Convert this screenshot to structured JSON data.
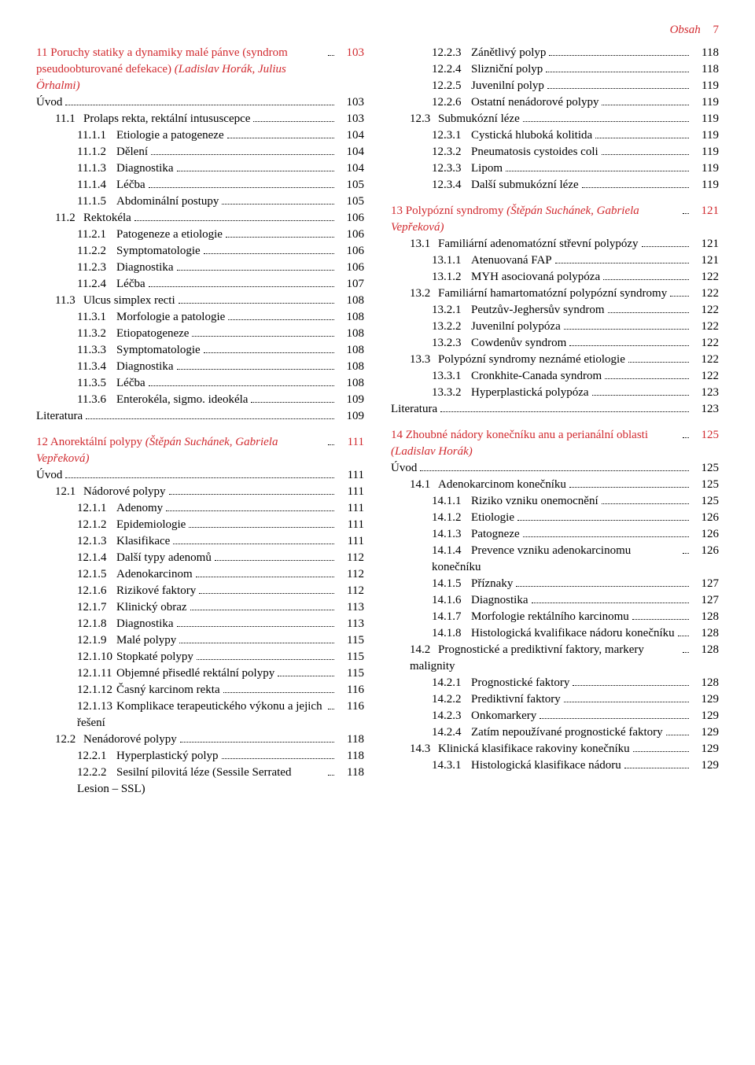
{
  "colors": {
    "accent": "#d12a2f",
    "text": "#000000",
    "background": "#ffffff"
  },
  "running_head": {
    "label": "Obsah",
    "page_number": "7"
  },
  "entries": [
    {
      "level": 0,
      "text": "11  Poruchy statiky a dynamiky malé pánve (syndrom pseudoobturované defekace) <i>(Ladislav Horák, Julius Örhalmi)</i>",
      "page": "103",
      "chapter": true
    },
    {
      "level": 0,
      "text": "Úvod",
      "page": "103"
    },
    {
      "level": 1,
      "num": "11.1",
      "text": "Prolaps rekta, rektální intususcepce",
      "page": "103"
    },
    {
      "level": 2,
      "num": "11.1.1",
      "text": "Etiologie a patogeneze",
      "page": "104"
    },
    {
      "level": 2,
      "num": "11.1.2",
      "text": "Dělení",
      "page": "104"
    },
    {
      "level": 2,
      "num": "11.1.3",
      "text": "Diagnostika",
      "page": "104"
    },
    {
      "level": 2,
      "num": "11.1.4",
      "text": "Léčba",
      "page": "105"
    },
    {
      "level": 2,
      "num": "11.1.5",
      "text": "Abdominální postupy",
      "page": "105"
    },
    {
      "level": 1,
      "num": "11.2",
      "text": "Rektokéla",
      "page": "106"
    },
    {
      "level": 2,
      "num": "11.2.1",
      "text": "Patogeneze a etiologie",
      "page": "106"
    },
    {
      "level": 2,
      "num": "11.2.2",
      "text": "Symptomatologie",
      "page": "106"
    },
    {
      "level": 2,
      "num": "11.2.3",
      "text": "Diagnostika",
      "page": "106"
    },
    {
      "level": 2,
      "num": "11.2.4",
      "text": "Léčba",
      "page": "107"
    },
    {
      "level": 1,
      "num": "11.3",
      "text": "Ulcus simplex recti",
      "page": "108"
    },
    {
      "level": 2,
      "num": "11.3.1",
      "text": "Morfologie a patologie",
      "page": "108"
    },
    {
      "level": 2,
      "num": "11.3.2",
      "text": "Etiopatogeneze",
      "page": "108"
    },
    {
      "level": 2,
      "num": "11.3.3",
      "text": "Symptomatologie",
      "page": "108"
    },
    {
      "level": 2,
      "num": "11.3.4",
      "text": "Diagnostika",
      "page": "108"
    },
    {
      "level": 2,
      "num": "11.3.5",
      "text": "Léčba",
      "page": "108"
    },
    {
      "level": 2,
      "num": "11.3.6",
      "text": "Enterokéla, sigmo. ideokéla",
      "page": "109"
    },
    {
      "level": 0,
      "text": "Literatura",
      "page": "109"
    },
    {
      "level": 0,
      "text": "12  Anorektální polypy <i>(Štěpán Suchánek, Gabriela Vepřeková)</i>",
      "page": "111",
      "chapter": true,
      "space_before": true
    },
    {
      "level": 0,
      "text": "Úvod",
      "page": "111"
    },
    {
      "level": 1,
      "num": "12.1",
      "text": "Nádorové polypy",
      "page": "111"
    },
    {
      "level": 2,
      "num": "12.1.1",
      "text": "Adenomy",
      "page": "111"
    },
    {
      "level": 2,
      "num": "12.1.2",
      "text": "Epidemiologie",
      "page": "111"
    },
    {
      "level": 2,
      "num": "12.1.3",
      "text": "Klasifikace",
      "page": "111"
    },
    {
      "level": 2,
      "num": "12.1.4",
      "text": "Další typy adenomů",
      "page": "112"
    },
    {
      "level": 2,
      "num": "12.1.5",
      "text": "Adenokarcinom",
      "page": "112"
    },
    {
      "level": 2,
      "num": "12.1.6",
      "text": "Rizikové faktory",
      "page": "112"
    },
    {
      "level": 2,
      "num": "12.1.7",
      "text": "Klinický obraz",
      "page": "113"
    },
    {
      "level": 2,
      "num": "12.1.8",
      "text": "Diagnostika",
      "page": "113"
    },
    {
      "level": 2,
      "num": "12.1.9",
      "text": "Malé polypy",
      "page": "115"
    },
    {
      "level": 2,
      "num": "12.1.10",
      "text": "Stopkaté polypy",
      "page": "115"
    },
    {
      "level": 2,
      "num": "12.1.11",
      "text": "Objemné přisedlé rektální polypy",
      "page": "115"
    },
    {
      "level": 2,
      "num": "12.1.12",
      "text": "Časný karcinom rekta",
      "page": "116"
    },
    {
      "level": 2,
      "num": "12.1.13",
      "text": "Komplikace terapeutic­kého výkonu a jejich řešení",
      "page": "116"
    },
    {
      "level": 1,
      "num": "12.2",
      "text": "Nenádorové polypy",
      "page": "118"
    },
    {
      "level": 2,
      "num": "12.2.1",
      "text": "Hyperplastický polyp",
      "page": "118"
    },
    {
      "level": 2,
      "num": "12.2.2",
      "text": "Sesilní pilovitá léze (Sessile Serrated Lesion – SSL)",
      "page": "118"
    },
    {
      "level": 2,
      "num": "12.2.3",
      "text": "Zánětlivý polyp",
      "page": "118"
    },
    {
      "level": 2,
      "num": "12.2.4",
      "text": "Slizniční polyp",
      "page": "118"
    },
    {
      "level": 2,
      "num": "12.2.5",
      "text": "Juvenilní polyp",
      "page": "119"
    },
    {
      "level": 2,
      "num": "12.2.6",
      "text": "Ostatní nenádorové polypy",
      "page": "119"
    },
    {
      "level": 1,
      "num": "12.3",
      "text": "Submukózní léze",
      "page": "119"
    },
    {
      "level": 2,
      "num": "12.3.1",
      "text": "Cystická hluboká kolitida",
      "page": "119"
    },
    {
      "level": 2,
      "num": "12.3.2",
      "text": "Pneumatosis cystoides coli",
      "page": "119"
    },
    {
      "level": 2,
      "num": "12.3.3",
      "text": "Lipom",
      "page": "119"
    },
    {
      "level": 2,
      "num": "12.3.4",
      "text": "Další submukózní léze",
      "page": "119"
    },
    {
      "level": 0,
      "text": "13  Polypózní syndromy <i>(Štěpán Suchánek, Gabriela Vepřeková)</i>",
      "page": "121",
      "chapter": true,
      "space_before": true
    },
    {
      "level": 1,
      "num": "13.1",
      "text": "Familiární adenomatózní střevní polypózy",
      "page": "121"
    },
    {
      "level": 2,
      "num": "13.1.1",
      "text": "Atenuovaná FAP",
      "page": "121"
    },
    {
      "level": 2,
      "num": "13.1.2",
      "text": "MYH asociovaná polypóza",
      "page": "122"
    },
    {
      "level": 1,
      "num": "13.2",
      "text": "Familiární hamartomatózní poly­pózní syndromy",
      "page": "122"
    },
    {
      "level": 2,
      "num": "13.2.1",
      "text": "Peutzův-Jeghersův syn­drom",
      "page": "122"
    },
    {
      "level": 2,
      "num": "13.2.2",
      "text": "Juvenilní polypóza",
      "page": "122"
    },
    {
      "level": 2,
      "num": "13.2.3",
      "text": "Cowdenův syndrom",
      "page": "122"
    },
    {
      "level": 1,
      "num": "13.3",
      "text": "Polypózní syndromy neznámé etiologie",
      "page": "122"
    },
    {
      "level": 2,
      "num": "13.3.1",
      "text": "Cronkhite-Canada syndrom",
      "page": "122"
    },
    {
      "level": 2,
      "num": "13.3.2",
      "text": "Hyperplastická polypóza",
      "page": "123"
    },
    {
      "level": 0,
      "text": "Literatura",
      "page": "123"
    },
    {
      "level": 0,
      "text": "14  Zhoubné nádory konečníku anu a perianální oblasti <i>(Ladislav Horák)</i>",
      "page": "125",
      "chapter": true,
      "space_before": true
    },
    {
      "level": 0,
      "text": "Úvod",
      "page": "125"
    },
    {
      "level": 1,
      "num": "14.1",
      "text": "Adenokarcinom konečníku",
      "page": "125"
    },
    {
      "level": 2,
      "num": "14.1.1",
      "text": "Riziko vzniku onemocnění",
      "page": "125"
    },
    {
      "level": 2,
      "num": "14.1.2",
      "text": "Etiologie",
      "page": "126"
    },
    {
      "level": 2,
      "num": "14.1.3",
      "text": "Patogneze",
      "page": "126"
    },
    {
      "level": 2,
      "num": "14.1.4",
      "text": "Prevence vzniku adenokar­cinomu konečníku",
      "page": "126"
    },
    {
      "level": 2,
      "num": "14.1.5",
      "text": "Příznaky",
      "page": "127"
    },
    {
      "level": 2,
      "num": "14.1.6",
      "text": "Diagnostika",
      "page": "127"
    },
    {
      "level": 2,
      "num": "14.1.7",
      "text": "Morfologie rektálního kar­cinomu",
      "page": "128"
    },
    {
      "level": 2,
      "num": "14.1.8",
      "text": "Histologická kvalifikace nádoru konečníku",
      "page": "128"
    },
    {
      "level": 1,
      "num": "14.2",
      "text": "Prognostické a prediktivní faktory, markery malignity",
      "page": "128"
    },
    {
      "level": 2,
      "num": "14.2.1",
      "text": "Prognostické faktory",
      "page": "128"
    },
    {
      "level": 2,
      "num": "14.2.2",
      "text": "Prediktivní faktory",
      "page": "129"
    },
    {
      "level": 2,
      "num": "14.2.3",
      "text": "Onkomarkery",
      "page": "129"
    },
    {
      "level": 2,
      "num": "14.2.4",
      "text": "Zatím nepoužívané prog­nostické faktory",
      "page": "129"
    },
    {
      "level": 1,
      "num": "14.3",
      "text": "Klinická klasifikace rakoviny koneč­níku",
      "page": "129"
    },
    {
      "level": 2,
      "num": "14.3.1",
      "text": "Histologická klasifikace nádoru",
      "page": "129"
    }
  ]
}
